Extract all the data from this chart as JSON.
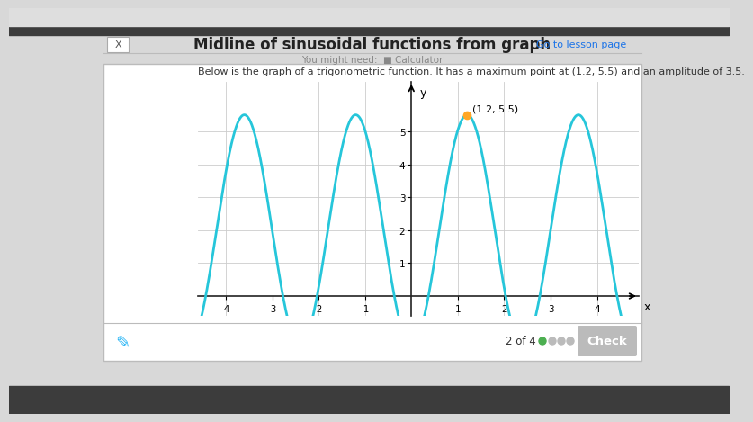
{
  "title": "Midline of sinusoidal functions from graph",
  "subtitle": "You might need:  ■ Calculator",
  "description": "Below is the graph of a trigonometric function. It has a maximum point at (1.2, 5.5) and an amplitude of 3.5.",
  "close_button": "X",
  "lesson_page": "Go to lesson page",
  "max_point": [
    1.2,
    5.5
  ],
  "amplitude": 3.5,
  "midline": 2.0,
  "period": 2.4,
  "xlim": [
    -4.6,
    4.9
  ],
  "ylim": [
    -0.6,
    6.5
  ],
  "xticks": [
    -4,
    -3,
    -2,
    -1,
    1,
    2,
    3,
    4
  ],
  "yticks": [
    1,
    2,
    3,
    4,
    5
  ],
  "curve_color": "#26C6DA",
  "point_color": "#FFA726",
  "grid_color": "#CCCCCC",
  "axis_color": "#222222",
  "page_bg": "#D8D8D8",
  "modal_bg": "#FFFFFF",
  "modal_edge": "#BBBBBB",
  "title_color": "#222222",
  "text_color": "#333333",
  "subtitle_color": "#888888",
  "lesson_color": "#1A73E8",
  "pagination": "2 of 4",
  "dot_active": "#4CAF50",
  "dot_inactive": "#BBBBBB",
  "check_bg": "#BBBBBB",
  "check_color": "#FFFFFF",
  "pencil_color": "#29B6F6"
}
